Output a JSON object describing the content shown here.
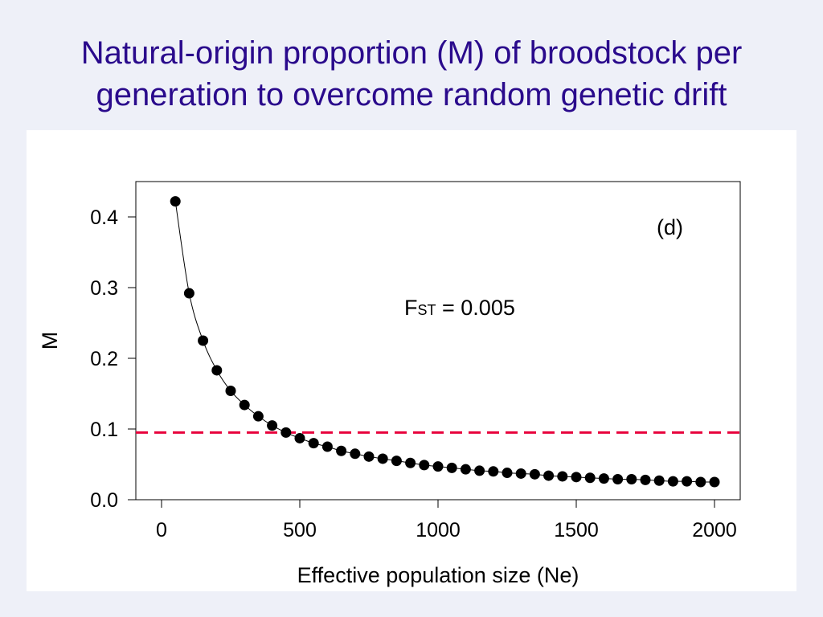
{
  "slide": {
    "title_line1": "Natural-origin proportion (M) of broodstock per",
    "title_line2": "generation to overcome random genetic drift"
  },
  "colors": {
    "title": "#2a0a8c",
    "background": "#eef0f8",
    "panel": "#ffffff",
    "threshold_line": "#e8003c",
    "points": "#000000"
  },
  "chart_data": {
    "type": "scatter",
    "title": "",
    "xlabel": "Effective population size (Ne)",
    "ylabel": "M",
    "xlim": [
      0,
      2000
    ],
    "ylim": [
      0,
      0.43
    ],
    "xticks": [
      0,
      500,
      1000,
      1500,
      2000
    ],
    "xtick_labels": [
      "0",
      "500",
      "1000",
      "1500",
      "2000"
    ],
    "yticks": [
      0.0,
      0.1,
      0.2,
      0.3,
      0.4
    ],
    "ytick_labels": [
      "0.0",
      "0.1",
      "0.2",
      "0.3",
      "0.4"
    ],
    "grid": false,
    "panel_label": "(d)",
    "annotation": {
      "main": "F",
      "subscript": "ST",
      "rest": " = 0.005"
    },
    "threshold": {
      "y": 0.095,
      "style": "dashed"
    },
    "series": [
      {
        "x": [
          50,
          100,
          150,
          200,
          250,
          300,
          350,
          400,
          450,
          500,
          550,
          600,
          650,
          700,
          750,
          800,
          850,
          900,
          950,
          1000,
          1050,
          1100,
          1150,
          1200,
          1250,
          1300,
          1350,
          1400,
          1450,
          1500,
          1550,
          1600,
          1650,
          1700,
          1750,
          1800,
          1850,
          1900,
          1950,
          2000
        ],
        "y": [
          0.422,
          0.292,
          0.225,
          0.183,
          0.154,
          0.134,
          0.118,
          0.105,
          0.095,
          0.087,
          0.08,
          0.075,
          0.069,
          0.065,
          0.061,
          0.058,
          0.055,
          0.052,
          0.049,
          0.047,
          0.045,
          0.043,
          0.041,
          0.04,
          0.038,
          0.037,
          0.036,
          0.034,
          0.033,
          0.032,
          0.031,
          0.03,
          0.029,
          0.029,
          0.028,
          0.027,
          0.026,
          0.026,
          0.025,
          0.025
        ]
      }
    ]
  }
}
